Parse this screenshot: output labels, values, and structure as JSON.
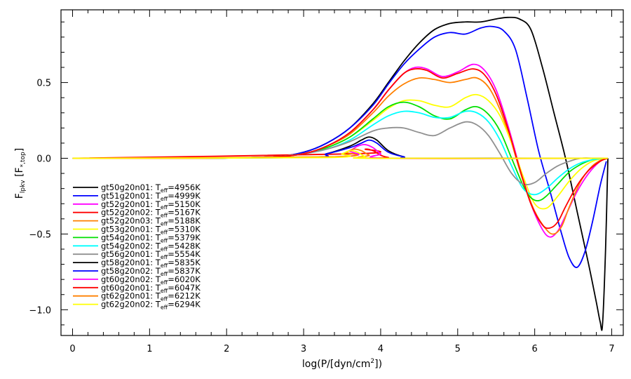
{
  "chart_data": {
    "type": "line",
    "xlabel_prefix": "log(P/[dyn/cm",
    "xlabel_sup": "2",
    "xlabel_suffix": "])",
    "ylabel_main": "F",
    "ylabel_sub": "lpkv",
    "ylabel_bracket_open": " [F",
    "ylabel_bracket_sub": "*,top",
    "ylabel_bracket_close": "]",
    "xlim": [
      -0.15,
      7.15
    ],
    "ylim": [
      -1.17,
      0.98
    ],
    "xticks": [
      0,
      1,
      2,
      3,
      4,
      5,
      6,
      7
    ],
    "yticks": [
      -1.0,
      -0.5,
      0.0,
      0.5
    ],
    "ytick_labels": [
      "−1.0",
      "−0.5",
      "0.0",
      "0.5"
    ],
    "legend_position": "lower-left",
    "series": [
      {
        "name": "gt50g20n01",
        "teff": "4956K",
        "color": "#000000",
        "x": [
          0,
          1.7,
          2.6,
          3.0,
          3.3,
          3.6,
          3.9,
          4.1,
          4.3,
          4.5,
          4.7,
          4.9,
          5.1,
          5.3,
          5.5,
          5.65,
          5.8,
          5.95,
          6.1,
          6.25,
          6.4,
          6.55,
          6.7,
          6.8,
          6.85,
          6.88,
          6.92,
          6.95
        ],
        "y": [
          0,
          0,
          0.01,
          0.04,
          0.1,
          0.2,
          0.36,
          0.5,
          0.64,
          0.76,
          0.85,
          0.89,
          0.9,
          0.9,
          0.92,
          0.93,
          0.92,
          0.85,
          0.6,
          0.3,
          0.0,
          -0.35,
          -0.7,
          -0.95,
          -1.08,
          -1.1,
          -0.6,
          0.0
        ]
      },
      {
        "name": "gt51g20n01",
        "teff": "4999K",
        "color": "#0000ff",
        "x": [
          0,
          1.7,
          2.6,
          3.0,
          3.3,
          3.6,
          3.9,
          4.1,
          4.3,
          4.5,
          4.7,
          4.9,
          5.1,
          5.3,
          5.45,
          5.6,
          5.75,
          5.9,
          6.05,
          6.2,
          6.35,
          6.45,
          6.55,
          6.65,
          6.75,
          6.85,
          6.93
        ],
        "y": [
          0,
          0,
          0.01,
          0.04,
          0.1,
          0.2,
          0.35,
          0.49,
          0.62,
          0.72,
          0.8,
          0.83,
          0.82,
          0.86,
          0.87,
          0.84,
          0.72,
          0.4,
          0.05,
          -0.22,
          -0.5,
          -0.66,
          -0.72,
          -0.62,
          -0.42,
          -0.18,
          -0.02
        ]
      },
      {
        "name": "gt52g20n01",
        "teff": "5150K",
        "color": "#ff00ff",
        "x": [
          0,
          1.7,
          2.6,
          3.0,
          3.3,
          3.6,
          3.9,
          4.1,
          4.3,
          4.45,
          4.6,
          4.8,
          5.0,
          5.2,
          5.35,
          5.5,
          5.65,
          5.8,
          5.95,
          6.1,
          6.2,
          6.3,
          6.4,
          6.55,
          6.7,
          6.85,
          6.95
        ],
        "y": [
          0,
          0,
          0.01,
          0.03,
          0.08,
          0.17,
          0.32,
          0.45,
          0.56,
          0.6,
          0.59,
          0.54,
          0.57,
          0.62,
          0.58,
          0.45,
          0.22,
          -0.05,
          -0.3,
          -0.47,
          -0.52,
          -0.48,
          -0.38,
          -0.22,
          -0.1,
          -0.02,
          0.0
        ]
      },
      {
        "name": "gt52g20n02",
        "teff": "5167K",
        "color": "#ff0000",
        "x": [
          0,
          3.7,
          3.8,
          3.9,
          4.0,
          4.1,
          4.2,
          6.9
        ],
        "y": [
          0,
          0.03,
          0.06,
          0.05,
          0.02,
          0.005,
          0,
          0
        ]
      },
      {
        "name": "gt52g20n03",
        "teff": "5188K",
        "color": "#ff8000",
        "x": [
          0,
          1.7,
          2.6,
          3.0,
          3.3,
          3.6,
          3.9,
          4.1,
          4.3,
          4.5,
          4.7,
          4.9,
          5.1,
          5.25,
          5.4,
          5.55,
          5.7,
          5.85,
          6.0,
          6.15,
          6.25,
          6.35,
          6.45,
          6.6,
          6.75,
          6.9
        ],
        "y": [
          0,
          0,
          0.01,
          0.03,
          0.08,
          0.16,
          0.3,
          0.41,
          0.49,
          0.53,
          0.52,
          0.5,
          0.52,
          0.53,
          0.47,
          0.32,
          0.1,
          -0.15,
          -0.35,
          -0.47,
          -0.5,
          -0.45,
          -0.32,
          -0.15,
          -0.05,
          0.0
        ]
      },
      {
        "name": "gt53g20n01",
        "teff": "5310K",
        "color": "#ffff00",
        "x": [
          0,
          1.7,
          2.6,
          3.0,
          3.3,
          3.6,
          3.9,
          4.1,
          4.3,
          4.5,
          4.7,
          4.9,
          5.1,
          5.25,
          5.4,
          5.55,
          5.7,
          5.85,
          6.0,
          6.15,
          6.3,
          6.45,
          6.6,
          6.75,
          6.9
        ],
        "y": [
          0,
          0,
          0.01,
          0.03,
          0.07,
          0.14,
          0.25,
          0.33,
          0.38,
          0.38,
          0.35,
          0.34,
          0.4,
          0.42,
          0.38,
          0.28,
          0.1,
          -0.12,
          -0.3,
          -0.33,
          -0.25,
          -0.15,
          -0.07,
          -0.02,
          0.0
        ]
      },
      {
        "name": "gt54g20n01",
        "teff": "5379K",
        "color": "#00e000",
        "x": [
          0,
          1.7,
          2.6,
          3.0,
          3.3,
          3.6,
          3.9,
          4.1,
          4.3,
          4.5,
          4.7,
          4.9,
          5.1,
          5.25,
          5.4,
          5.55,
          5.7,
          5.85,
          5.95,
          6.05,
          6.15,
          6.3,
          6.45,
          6.6,
          6.75,
          6.9
        ],
        "y": [
          0,
          0,
          0.01,
          0.03,
          0.07,
          0.14,
          0.26,
          0.34,
          0.37,
          0.34,
          0.28,
          0.26,
          0.32,
          0.34,
          0.29,
          0.18,
          0.0,
          -0.18,
          -0.26,
          -0.28,
          -0.25,
          -0.17,
          -0.09,
          -0.04,
          -0.01,
          0.0
        ]
      },
      {
        "name": "gt54g20n02",
        "teff": "5428K",
        "color": "#00ffff",
        "x": [
          0,
          1.7,
          2.6,
          3.0,
          3.3,
          3.6,
          3.9,
          4.1,
          4.3,
          4.5,
          4.7,
          4.9,
          5.1,
          5.25,
          5.4,
          5.55,
          5.7,
          5.85,
          6.0,
          6.15,
          6.3,
          6.45,
          6.6,
          6.75,
          6.9
        ],
        "y": [
          0,
          0,
          0.01,
          0.03,
          0.06,
          0.12,
          0.22,
          0.28,
          0.31,
          0.3,
          0.27,
          0.27,
          0.31,
          0.3,
          0.24,
          0.12,
          -0.05,
          -0.2,
          -0.24,
          -0.2,
          -0.13,
          -0.07,
          -0.03,
          -0.01,
          0.0
        ]
      },
      {
        "name": "gt56g20n01",
        "teff": "5554K",
        "color": "#909090",
        "x": [
          0,
          1.7,
          2.6,
          3.0,
          3.3,
          3.6,
          3.9,
          4.1,
          4.3,
          4.5,
          4.7,
          4.9,
          5.1,
          5.25,
          5.4,
          5.55,
          5.7,
          5.85,
          6.0,
          6.15,
          6.3,
          6.45,
          6.6,
          6.8,
          6.95
        ],
        "y": [
          0,
          0,
          0.01,
          0.03,
          0.06,
          0.11,
          0.18,
          0.2,
          0.2,
          0.17,
          0.15,
          0.2,
          0.24,
          0.22,
          0.15,
          0.03,
          -0.1,
          -0.17,
          -0.16,
          -0.1,
          -0.05,
          -0.02,
          0.0,
          0.0,
          0.0
        ]
      },
      {
        "name": "gt58g20n01",
        "teff": "5835K",
        "color": "#000000",
        "x": [
          0,
          3.0,
          3.3,
          3.6,
          3.75,
          3.85,
          3.95,
          4.1,
          4.3,
          4.5,
          6.9
        ],
        "y": [
          0,
          0.005,
          0.03,
          0.08,
          0.12,
          0.14,
          0.12,
          0.05,
          0.01,
          0,
          0
        ]
      },
      {
        "name": "gt58g20n02",
        "teff": "5837K",
        "color": "#0000ff",
        "x": [
          0,
          3.0,
          3.3,
          3.6,
          3.75,
          3.85,
          3.95,
          4.1,
          4.3,
          4.5,
          6.9
        ],
        "y": [
          0,
          0.005,
          0.03,
          0.07,
          0.1,
          0.12,
          0.1,
          0.04,
          0.01,
          0,
          0
        ]
      },
      {
        "name": "gt60g20n02",
        "teff": "6020K",
        "color": "#ff00ff",
        "x": [
          0,
          3.4,
          3.6,
          3.7,
          3.8,
          3.9,
          4.0,
          4.1,
          6.9
        ],
        "y": [
          0,
          0.01,
          0.05,
          0.08,
          0.09,
          0.07,
          0.03,
          0,
          0
        ]
      },
      {
        "name": "gt60g20n01",
        "teff": "6047K",
        "color": "#ff0000",
        "x": [
          0,
          1.7,
          2.6,
          3.0,
          3.3,
          3.6,
          3.9,
          4.1,
          4.3,
          4.45,
          4.6,
          4.8,
          5.0,
          5.2,
          5.35,
          5.5,
          5.65,
          5.8,
          5.95,
          6.1,
          6.2,
          6.3,
          6.4,
          6.55,
          6.7,
          6.85,
          6.95
        ],
        "y": [
          0,
          0,
          0.01,
          0.03,
          0.08,
          0.17,
          0.32,
          0.45,
          0.56,
          0.59,
          0.58,
          0.53,
          0.56,
          0.59,
          0.55,
          0.42,
          0.2,
          -0.06,
          -0.3,
          -0.44,
          -0.46,
          -0.42,
          -0.32,
          -0.18,
          -0.08,
          -0.02,
          0.0
        ]
      },
      {
        "name": "gt62g20n01",
        "teff": "6212K",
        "color": "#ff8000",
        "x": [
          0,
          3.4,
          3.55,
          3.65,
          3.75,
          3.85,
          3.95,
          6.9
        ],
        "y": [
          0,
          0.01,
          0.04,
          0.06,
          0.05,
          0.02,
          0,
          0
        ]
      },
      {
        "name": "gt62g20n02",
        "teff": "6294K",
        "color": "#ffff00",
        "x": [
          0,
          3.3,
          3.5,
          3.6,
          3.7,
          3.8,
          3.9,
          6.95
        ],
        "y": [
          0,
          0.005,
          0.03,
          0.05,
          0.04,
          0.01,
          0,
          0
        ]
      }
    ],
    "legend_label_prefix": ": T",
    "legend_label_sub": "eff",
    "legend_label_eq": "="
  }
}
